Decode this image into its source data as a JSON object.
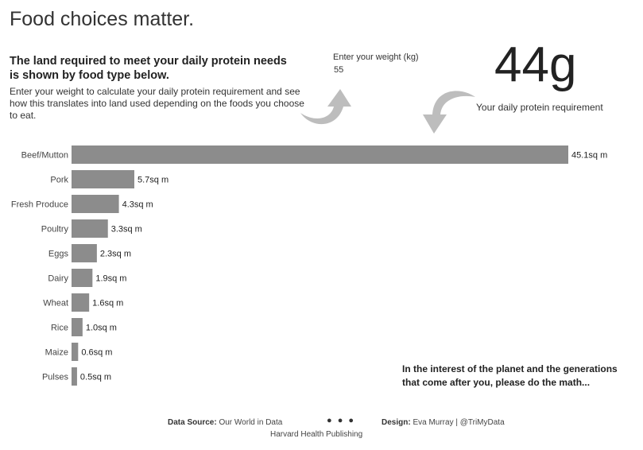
{
  "title": "Food choices matter.",
  "subtitle": "The land required to meet your daily protein needs is shown by food type below.",
  "intro": "Enter your weight to calculate your daily protein requirement and see how this translates into land used depending on the foods you choose to eat.",
  "weight_input": {
    "label": "Enter your weight (kg)",
    "value": "55"
  },
  "protein": {
    "value": "44g",
    "label": "Your daily protein requirement"
  },
  "icons": {
    "input_arrow": "curved-arrow-up-icon",
    "result_arrow": "curved-arrow-down-icon",
    "arrow_color": "#bdbdbd"
  },
  "chart_data": {
    "type": "bar",
    "orientation": "horizontal",
    "categories": [
      "Beef/Mutton",
      "Pork",
      "Fresh Produce",
      "Poultry",
      "Eggs",
      "Dairy",
      "Wheat",
      "Rice",
      "Maize",
      "Pulses"
    ],
    "values": [
      45.1,
      5.7,
      4.3,
      3.3,
      2.3,
      1.9,
      1.6,
      1.0,
      0.6,
      0.5
    ],
    "data_labels": [
      "45.1sq m",
      "5.7sq m",
      "4.3sq m",
      "3.3sq m",
      "2.3sq m",
      "1.9sq m",
      "1.6sq m",
      "1.0sq m",
      "0.6sq m",
      "0.5sq m"
    ],
    "bar_color": "#8c8c8c",
    "xlim": [
      0,
      45.1
    ],
    "grid": false
  },
  "callout": "In the interest of the planet and the generations that come after you, please do the math...",
  "footer": {
    "source_label": "Data Source:",
    "source_value": "Our World in Data",
    "source_value_2": "Harvard Health Publishing",
    "separator": "● ● ●",
    "design_label": "Design:",
    "design_value": "Eva Murray | @TriMyData"
  }
}
